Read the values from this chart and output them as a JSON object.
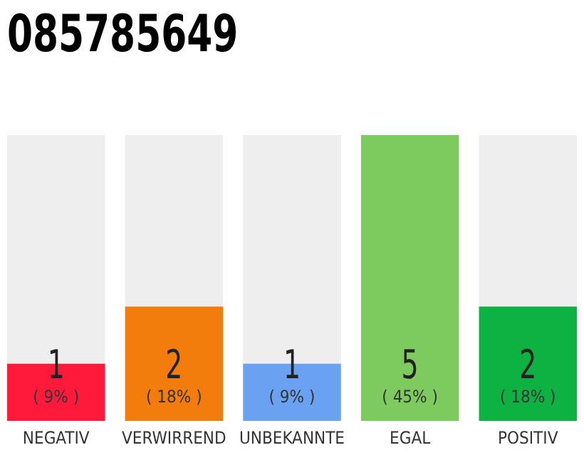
{
  "chart_data": {
    "type": "bar",
    "title": "085785649",
    "categories": [
      "NEGATIV",
      "VERWIRREND",
      "UNBEKANNTE",
      "EGAL",
      "POSITIV"
    ],
    "values": [
      1,
      2,
      1,
      5,
      2
    ],
    "colors": [
      "#ff1a3c",
      "#f27d0c",
      "#6aa1f0",
      "#7dcb5f",
      "#0db243"
    ],
    "data_labels": true,
    "annotations": [
      "( 9% )",
      "( 18% )",
      "( 9% )",
      "( 45% )",
      "( 18% )"
    ]
  }
}
